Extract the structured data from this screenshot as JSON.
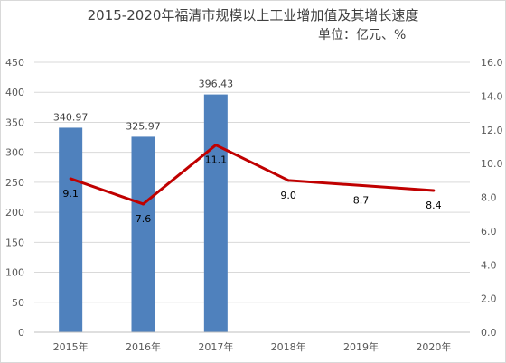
{
  "chart_data": {
    "type": "bar",
    "title": "2015-2020年福清市规模以上工业增加值及其增长速度",
    "subtitle": "单位：亿元、%",
    "categories": [
      "2015年",
      "2016年",
      "2017年",
      "2018年",
      "2019年",
      "2020年"
    ],
    "series": [
      {
        "type": "bar",
        "axis": "left",
        "color": "#4f81bd",
        "values": [
          340.97,
          325.97,
          396.43,
          null,
          null,
          null
        ],
        "labels": [
          "340.97",
          "325.97",
          "396.43",
          "",
          "",
          ""
        ]
      },
      {
        "type": "line",
        "axis": "right",
        "color": "#c00000",
        "values": [
          9.1,
          7.6,
          11.1,
          9.0,
          8.7,
          8.4
        ],
        "labels": [
          "9.1",
          "7.6",
          "11.1",
          "9.0",
          "8.7",
          "8.4"
        ]
      }
    ],
    "y_left": {
      "ylim": [
        0,
        450
      ],
      "ticks": [
        "0",
        "50",
        "100",
        "150",
        "200",
        "250",
        "300",
        "350",
        "400",
        "450"
      ]
    },
    "y_right": {
      "ylim": [
        0,
        16
      ],
      "ticks": [
        "0.0",
        "2.0",
        "4.0",
        "6.0",
        "8.0",
        "10.0",
        "12.0",
        "14.0",
        "16.0"
      ]
    },
    "grid": true,
    "legend": "none"
  }
}
